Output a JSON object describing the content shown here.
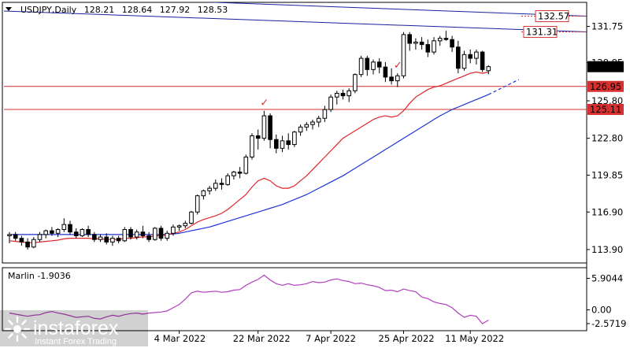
{
  "chart_data": {
    "type": "candlestick",
    "header": {
      "symbol": "USDJPY,Daily",
      "open": "128.21",
      "high": "128.64",
      "low": "127.92",
      "close": "128.53"
    },
    "x_labels": [
      "4 Mar 2022",
      "22 Mar 2022",
      "7 Apr 2022",
      "25 Apr 2022",
      "11 May 2022"
    ],
    "price_axis": {
      "ticks": [
        "131.75",
        "128.85",
        "125.80",
        "122.80",
        "119.85",
        "116.90",
        "113.90"
      ],
      "ylim": [
        112.95,
        133.55
      ],
      "current_price": "128.53"
    },
    "levels": [
      {
        "value": 132.57,
        "label": "132.57",
        "kind": "channel-line"
      },
      {
        "value": 131.31,
        "label": "131.31",
        "kind": "channel-line"
      },
      {
        "value": 126.95,
        "label": "126.95",
        "kind": "horizontal"
      },
      {
        "value": 125.11,
        "label": "125.11",
        "kind": "horizontal"
      }
    ],
    "ohlc": [
      [
        115.0,
        115.3,
        114.4,
        115.1
      ],
      [
        115.1,
        115.3,
        114.6,
        114.8
      ],
      [
        114.8,
        115.0,
        114.2,
        114.5
      ],
      [
        114.5,
        114.8,
        113.9,
        114.1
      ],
      [
        114.1,
        114.9,
        114.0,
        114.7
      ],
      [
        114.7,
        115.3,
        114.5,
        115.1
      ],
      [
        115.1,
        115.5,
        114.8,
        115.4
      ],
      [
        115.4,
        115.7,
        115.0,
        115.2
      ],
      [
        115.2,
        115.6,
        114.9,
        115.5
      ],
      [
        115.5,
        116.4,
        115.3,
        115.9
      ],
      [
        115.9,
        116.2,
        115.1,
        115.3
      ],
      [
        115.3,
        115.6,
        114.8,
        115.0
      ],
      [
        115.0,
        115.6,
        114.9,
        115.5
      ],
      [
        115.5,
        115.8,
        114.9,
        115.1
      ],
      [
        115.1,
        115.3,
        114.5,
        114.7
      ],
      [
        114.7,
        115.1,
        114.5,
        114.9
      ],
      [
        114.9,
        115.2,
        114.3,
        114.5
      ],
      [
        114.5,
        115.0,
        114.2,
        114.8
      ],
      [
        114.8,
        115.0,
        114.4,
        114.6
      ],
      [
        114.6,
        115.7,
        114.5,
        115.5
      ],
      [
        115.5,
        115.7,
        114.7,
        114.9
      ],
      [
        114.9,
        115.5,
        114.7,
        115.3
      ],
      [
        115.3,
        115.8,
        114.8,
        115.0
      ],
      [
        115.0,
        115.3,
        114.5,
        114.7
      ],
      [
        114.7,
        115.7,
        114.6,
        115.6
      ],
      [
        115.6,
        115.8,
        114.6,
        114.8
      ],
      [
        114.8,
        115.4,
        114.6,
        115.2
      ],
      [
        115.2,
        115.9,
        115.0,
        115.7
      ],
      [
        115.7,
        115.9,
        115.4,
        115.8
      ],
      [
        115.8,
        116.2,
        115.6,
        116.0
      ],
      [
        116.0,
        117.0,
        115.9,
        116.9
      ],
      [
        116.9,
        118.3,
        116.7,
        118.2
      ],
      [
        118.2,
        118.7,
        117.9,
        118.6
      ],
      [
        118.6,
        119.0,
        118.3,
        118.8
      ],
      [
        118.8,
        119.5,
        118.6,
        119.2
      ],
      [
        119.2,
        119.6,
        118.7,
        119.1
      ],
      [
        119.1,
        120.0,
        119.0,
        119.8
      ],
      [
        119.8,
        120.2,
        119.5,
        120.1
      ],
      [
        120.1,
        120.5,
        119.6,
        120.0
      ],
      [
        120.0,
        121.5,
        119.9,
        121.3
      ],
      [
        121.3,
        123.2,
        121.1,
        123.0
      ],
      [
        123.0,
        123.5,
        121.9,
        122.8
      ],
      [
        122.8,
        125.0,
        122.6,
        124.6
      ],
      [
        124.6,
        124.8,
        122.0,
        122.7
      ],
      [
        122.7,
        123.1,
        121.6,
        122.0
      ],
      [
        122.0,
        123.0,
        121.7,
        122.6
      ],
      [
        122.6,
        123.2,
        121.9,
        122.3
      ],
      [
        122.3,
        123.4,
        122.1,
        123.3
      ],
      [
        123.3,
        123.9,
        123.0,
        123.7
      ],
      [
        123.7,
        124.1,
        123.4,
        123.9
      ],
      [
        123.9,
        124.3,
        123.5,
        124.1
      ],
      [
        124.1,
        124.6,
        123.7,
        124.4
      ],
      [
        124.4,
        125.4,
        124.1,
        125.1
      ],
      [
        125.1,
        126.3,
        124.9,
        126.1
      ],
      [
        126.1,
        126.6,
        125.5,
        126.4
      ],
      [
        126.4,
        126.7,
        125.9,
        126.2
      ],
      [
        126.2,
        126.8,
        125.7,
        126.6
      ],
      [
        126.6,
        128.0,
        126.4,
        127.9
      ],
      [
        127.9,
        129.4,
        127.7,
        129.2
      ],
      [
        129.2,
        129.4,
        127.8,
        128.3
      ],
      [
        128.3,
        129.1,
        127.9,
        128.9
      ],
      [
        128.9,
        129.2,
        128.0,
        128.5
      ],
      [
        128.5,
        128.9,
        127.3,
        127.7
      ],
      [
        127.7,
        128.4,
        127.1,
        127.4
      ],
      [
        127.4,
        128.0,
        126.9,
        127.8
      ],
      [
        127.8,
        131.3,
        127.6,
        131.1
      ],
      [
        131.1,
        131.3,
        129.8,
        130.4
      ],
      [
        130.4,
        130.8,
        129.9,
        130.5
      ],
      [
        130.5,
        130.9,
        129.9,
        130.3
      ],
      [
        130.3,
        130.7,
        129.3,
        129.7
      ],
      [
        129.7,
        130.9,
        129.5,
        130.6
      ],
      [
        130.6,
        131.0,
        130.2,
        130.8
      ],
      [
        130.8,
        131.4,
        130.6,
        130.7
      ],
      [
        130.7,
        131.0,
        129.7,
        130.1
      ],
      [
        130.1,
        130.6,
        128.0,
        128.4
      ],
      [
        128.4,
        129.8,
        128.2,
        129.5
      ],
      [
        129.5,
        129.9,
        128.8,
        129.2
      ],
      [
        129.2,
        129.9,
        128.7,
        129.7
      ],
      [
        129.7,
        129.8,
        128.1,
        128.3
      ],
      [
        128.21,
        128.64,
        127.92,
        128.53
      ]
    ],
    "ma_red": [
      114.6,
      114.55,
      114.5,
      114.45,
      114.45,
      114.5,
      114.55,
      114.6,
      114.65,
      114.75,
      114.8,
      114.8,
      114.8,
      114.8,
      114.75,
      114.75,
      114.7,
      114.7,
      114.7,
      114.8,
      114.8,
      114.85,
      114.9,
      114.9,
      115.0,
      115.0,
      115.1,
      115.2,
      115.3,
      115.5,
      115.8,
      116.1,
      116.3,
      116.45,
      116.6,
      116.8,
      117.1,
      117.5,
      117.9,
      118.3,
      118.9,
      119.4,
      119.6,
      119.4,
      119.0,
      118.8,
      118.8,
      119.0,
      119.4,
      119.8,
      120.3,
      120.8,
      121.3,
      121.8,
      122.3,
      122.8,
      123.1,
      123.4,
      123.7,
      124.0,
      124.3,
      124.5,
      124.6,
      124.5,
      124.6,
      125.0,
      125.6,
      126.1,
      126.4,
      126.7,
      126.9,
      127.0,
      127.2,
      127.4,
      127.6,
      127.8,
      128.0,
      128.1,
      128.0,
      128.1
    ],
    "ma_blue": [
      115.1,
      115.1,
      115.1,
      115.1,
      115.1,
      115.1,
      115.1,
      115.1,
      115.1,
      115.1,
      115.1,
      115.1,
      115.1,
      115.1,
      115.1,
      115.1,
      115.1,
      115.1,
      115.1,
      115.1,
      115.1,
      115.1,
      115.1,
      115.1,
      115.1,
      115.1,
      115.1,
      115.15,
      115.2,
      115.3,
      115.4,
      115.5,
      115.6,
      115.7,
      115.85,
      116.0,
      116.15,
      116.3,
      116.45,
      116.6,
      116.75,
      116.9,
      117.05,
      117.2,
      117.35,
      117.5,
      117.7,
      117.9,
      118.1,
      118.3,
      118.55,
      118.8,
      119.05,
      119.3,
      119.55,
      119.8,
      120.1,
      120.4,
      120.7,
      121.0,
      121.3,
      121.6,
      121.9,
      122.2,
      122.5,
      122.8,
      123.1,
      123.4,
      123.7,
      124.0,
      124.3,
      124.6,
      124.85,
      125.1,
      125.3,
      125.5,
      125.7,
      125.9,
      126.1,
      126.3
    ],
    "ma_blue_projection": [
      126.3,
      127.5
    ],
    "marks": [
      {
        "index": 42,
        "symbol": "✓"
      },
      {
        "index": 64,
        "symbol": "✓"
      }
    ],
    "indicator": {
      "name": "Marlin -1.9036",
      "ticks": [
        "5.9044",
        "0.00",
        "-2.5719"
      ],
      "ylim": [
        -3.6,
        7.6
      ],
      "values": [
        -0.6,
        -0.8,
        -1.0,
        -1.2,
        -1.0,
        -0.9,
        -0.5,
        -0.3,
        -0.6,
        -0.8,
        -1.1,
        -1.4,
        -1.3,
        -1.2,
        -1.6,
        -1.7,
        -1.3,
        -1.0,
        -1.2,
        -0.9,
        -0.7,
        -0.6,
        -0.8,
        -0.6,
        -0.5,
        -0.4,
        -0.2,
        0.4,
        1.0,
        2.0,
        3.2,
        3.5,
        3.3,
        3.4,
        3.5,
        3.3,
        3.4,
        3.7,
        3.8,
        4.6,
        5.2,
        5.7,
        6.5,
        5.6,
        4.9,
        4.6,
        4.9,
        4.6,
        4.7,
        4.9,
        5.3,
        5.1,
        5.2,
        5.6,
        5.8,
        5.5,
        5.3,
        4.9,
        5.0,
        4.7,
        4.5,
        4.2,
        3.6,
        3.7,
        3.4,
        3.9,
        3.6,
        3.4,
        2.4,
        2.1,
        1.5,
        1.2,
        1.0,
        0.4,
        -0.6,
        -1.4,
        -1.0,
        -1.2,
        -2.6,
        -1.9
      ]
    },
    "colors": {
      "bull": "#ffffff",
      "bear": "#000000",
      "ma_red": "#e0242a",
      "ma_blue": "#1e33d6",
      "levels": "#d63030",
      "channel": "#1a1f9c",
      "indicator": "#b23fbf",
      "background": "#ffffff"
    }
  },
  "watermark": {
    "brand": "instaforex",
    "tagline": "Instant Forex Trading"
  }
}
